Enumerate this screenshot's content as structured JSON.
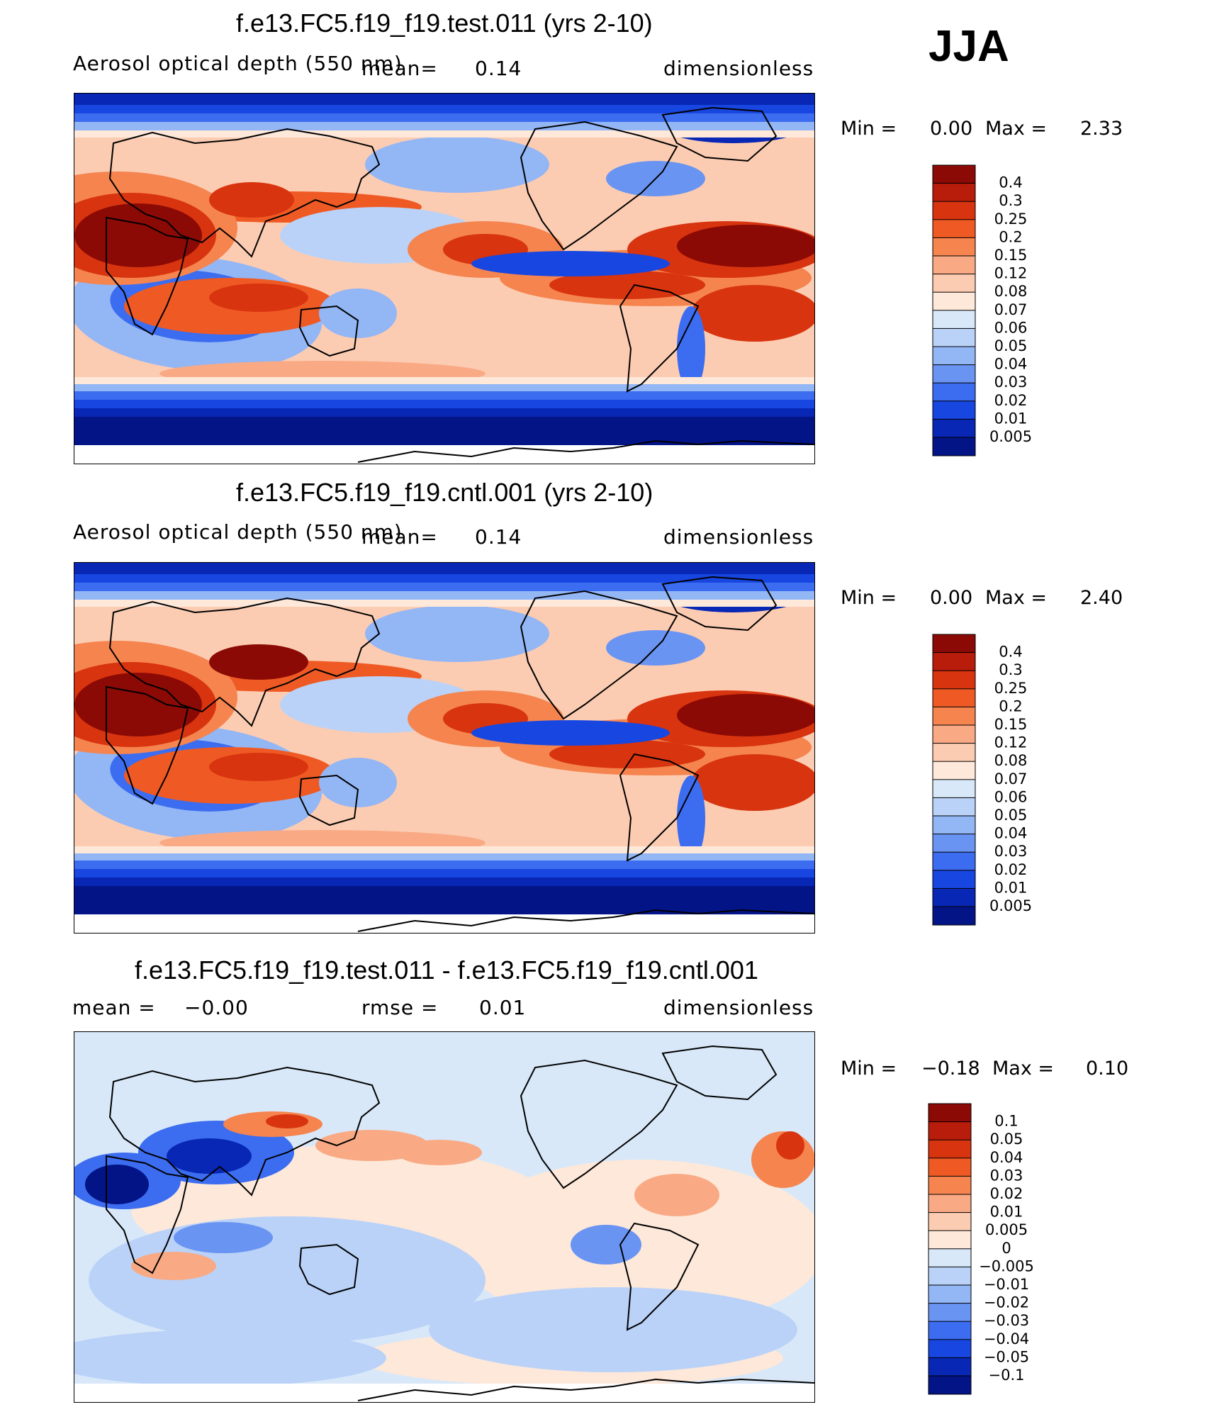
{
  "season": "JJA",
  "panels": [
    {
      "id": "test",
      "title": "f.e13.FC5.f19_f19.test.011 (yrs 2-10)",
      "variable": "Aerosol optical depth (550 nm)",
      "mean_label": "mean=",
      "mean_value": "0.14",
      "units": "dimensionless",
      "min_label": "Min =",
      "min_value": "0.00",
      "max_label": "Max =",
      "max_value": "2.33"
    },
    {
      "id": "cntl",
      "title": "f.e13.FC5.f19_f19.cntl.001 (yrs 2-10)",
      "variable": "Aerosol optical depth (550 nm)",
      "mean_label": "mean=",
      "mean_value": "0.14",
      "units": "dimensionless",
      "min_label": "Min =",
      "min_value": "0.00",
      "max_label": "Max =",
      "max_value": "2.40"
    },
    {
      "id": "diff",
      "title": "f.e13.FC5.f19_f19.test.011 - f.e13.FC5.f19_f19.cntl.001",
      "mean_label": "mean =",
      "mean_value": "−0.00",
      "rmse_label": "rmse =",
      "rmse_value": "0.01",
      "units": "dimensionless",
      "min_label": "Min =",
      "min_value": "−0.18",
      "max_label": "Max =",
      "max_value": "0.10"
    }
  ],
  "chart_data": [
    {
      "type": "heatmap",
      "title": "f.e13.FC5.f19_f19.test.011 (yrs 2-10)",
      "variable": "Aerosol optical depth (550 nm)",
      "units": "dimensionless",
      "mean": 0.14,
      "min": 0.0,
      "max": 2.33,
      "colorbar": {
        "levels": [
          "0.4",
          "0.3",
          "0.25",
          "0.2",
          "0.15",
          "0.12",
          "0.08",
          "0.07",
          "0.06",
          "0.05",
          "0.04",
          "0.03",
          "0.02",
          "0.01",
          "0.005"
        ],
        "colors": [
          "#8b0a05",
          "#b81c0a",
          "#d8340f",
          "#ef5a24",
          "#f5844f",
          "#f9aa85",
          "#fcccb2",
          "#fde8da",
          "#d8e8f8",
          "#bad2f8",
          "#93b6f5",
          "#6a94f2",
          "#3c6df0",
          "#1846e0",
          "#0727b4",
          "#031487"
        ]
      }
    },
    {
      "type": "heatmap",
      "title": "f.e13.FC5.f19_f19.cntl.001 (yrs 2-10)",
      "variable": "Aerosol optical depth (550 nm)",
      "units": "dimensionless",
      "mean": 0.14,
      "min": 0.0,
      "max": 2.4,
      "colorbar": {
        "levels": [
          "0.4",
          "0.3",
          "0.25",
          "0.2",
          "0.15",
          "0.12",
          "0.08",
          "0.07",
          "0.06",
          "0.05",
          "0.04",
          "0.03",
          "0.02",
          "0.01",
          "0.005"
        ],
        "colors": [
          "#8b0a05",
          "#b81c0a",
          "#d8340f",
          "#ef5a24",
          "#f5844f",
          "#f9aa85",
          "#fcccb2",
          "#fde8da",
          "#d8e8f8",
          "#bad2f8",
          "#93b6f5",
          "#6a94f2",
          "#3c6df0",
          "#1846e0",
          "#0727b4",
          "#031487"
        ]
      }
    },
    {
      "type": "heatmap",
      "title": "f.e13.FC5.f19_f19.test.011 - f.e13.FC5.f19_f19.cntl.001",
      "units": "dimensionless",
      "mean": -0.0,
      "rmse": 0.01,
      "min": -0.18,
      "max": 0.1,
      "colorbar": {
        "levels": [
          "0.1",
          "0.05",
          "0.04",
          "0.03",
          "0.02",
          "0.01",
          "0.005",
          "0",
          "−0.005",
          "−0.01",
          "−0.02",
          "−0.03",
          "−0.04",
          "−0.05",
          "−0.1"
        ],
        "colors": [
          "#8b0a05",
          "#b81c0a",
          "#d8340f",
          "#ef5a24",
          "#f5844f",
          "#f9aa85",
          "#fcccb2",
          "#fde8da",
          "#d8e8f8",
          "#bad2f8",
          "#93b6f5",
          "#6a94f2",
          "#3c6df0",
          "#1846e0",
          "#0727b4",
          "#031487"
        ]
      }
    }
  ]
}
